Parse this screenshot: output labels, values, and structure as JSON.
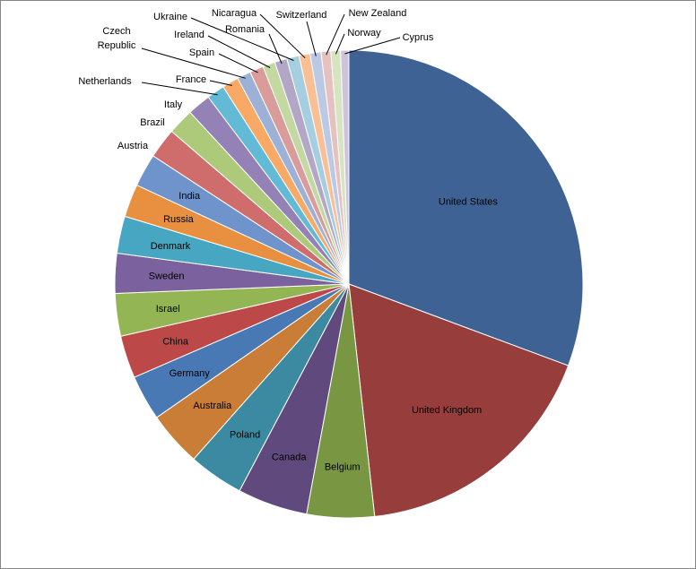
{
  "chart_data": {
    "type": "pie",
    "title": "",
    "start_angle_deg": 0,
    "direction": "clockwise",
    "categories": [
      "United States",
      "United Kingdom",
      "Belgium",
      "Canada",
      "Poland",
      "Australia",
      "Germany",
      "China",
      "Israel",
      "Sweden",
      "Denmark",
      "Russia",
      "India",
      "Austria",
      "Brazil",
      "Italy",
      "Netherlands",
      "France",
      "Czech Republic",
      "Spain",
      "Ireland",
      "Romania",
      "Ukraine",
      "Nicaragua",
      "Switzerland",
      "New Zealand",
      "Norway",
      "Cyprus"
    ],
    "values": [
      32.3,
      18.5,
      4.9,
      5.1,
      4.0,
      4.0,
      3.3,
      3.1,
      3.1,
      2.9,
      2.7,
      2.4,
      2.4,
      2.2,
      1.9,
      1.7,
      1.3,
      1.2,
      1.0,
      1.0,
      0.9,
      0.9,
      0.9,
      0.8,
      0.8,
      0.7,
      0.7,
      0.6
    ],
    "colors": [
      "#3d6293",
      "#973d3c",
      "#799643",
      "#604a7d",
      "#3b8aa2",
      "#c97d36",
      "#4979b5",
      "#bc4948",
      "#94b553",
      "#7b629e",
      "#47a6c2",
      "#e8903f",
      "#6f93cb",
      "#ce6d6c",
      "#acca79",
      "#9481b5",
      "#63bad6",
      "#f8a966",
      "#9db0d6",
      "#d99c9b",
      "#c4d8a1",
      "#b3a7c8",
      "#a5cfe0",
      "#fbbf95",
      "#bcc9e5",
      "#e7c0c0",
      "#d6e4c1",
      "#ccc3dd"
    ],
    "labels_inside": [
      "United States",
      "United Kingdom",
      "Belgium",
      "Canada",
      "Poland",
      "Australia",
      "Germany",
      "China",
      "Israel",
      "Sweden",
      "Denmark",
      "Russia",
      "India"
    ],
    "legend": "none"
  }
}
